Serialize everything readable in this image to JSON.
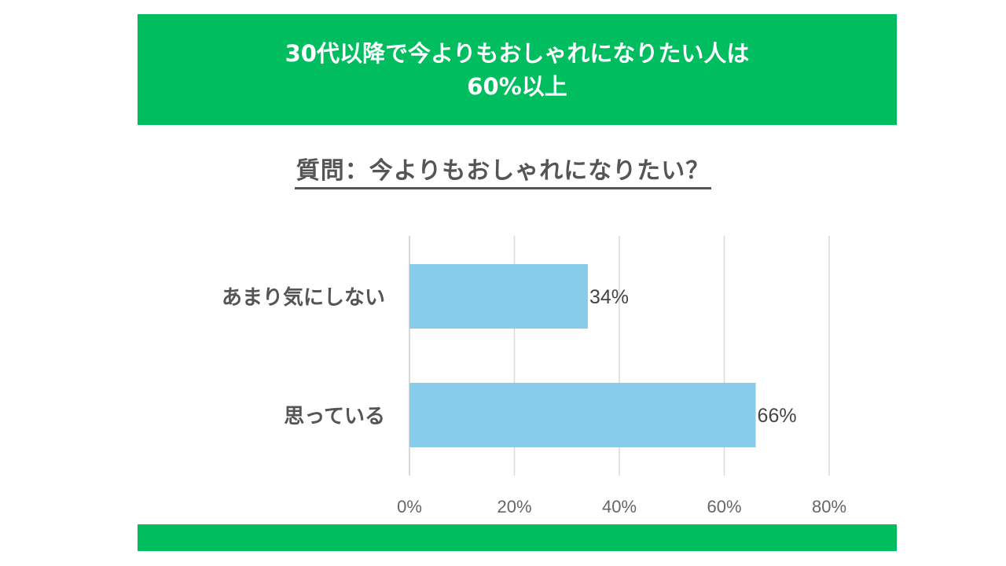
{
  "header": {
    "line1": "30代以降で今よりもおしゃれになりたい人は",
    "line2": "60%以上"
  },
  "question": "質問：今よりもおしゃれになりたい？",
  "colors": {
    "accent": "#00bd5f",
    "bar": "#87cceb",
    "text": "#555555",
    "grid": "#d9d9d9"
  },
  "chart_data": {
    "type": "bar",
    "orientation": "horizontal",
    "categories": [
      "あまり気にしない",
      "思っている"
    ],
    "values": [
      34,
      66
    ],
    "data_labels": [
      "34%",
      "66%"
    ],
    "xlim": [
      0,
      80
    ],
    "x_ticks": [
      "0%",
      "20%",
      "40%",
      "60%",
      "80%"
    ],
    "grid": true
  }
}
